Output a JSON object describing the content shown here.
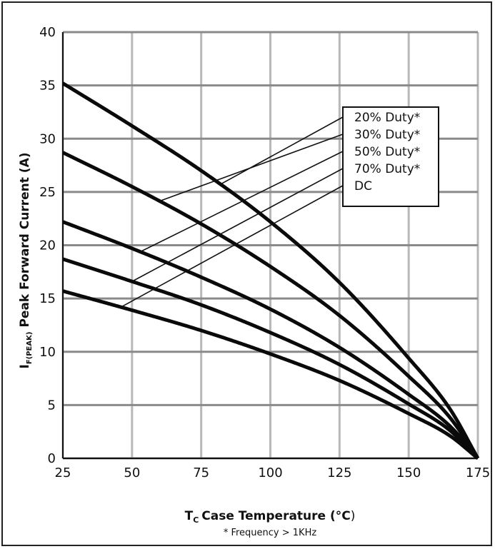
{
  "chart_data": {
    "type": "line",
    "xlabel": {
      "symbol": "T",
      "subscript": "C",
      "text": "Case Temperature (",
      "degree": "°C",
      "close": ")"
    },
    "ylabel": {
      "symbol": "I",
      "subscript": "F(PEAK)",
      "text": "Peak Forward Current (A)"
    },
    "footnote": "* Frequency > 1KHz",
    "xlim": [
      25,
      175
    ],
    "ylim": [
      0,
      40
    ],
    "xticks": [
      25,
      50,
      75,
      100,
      125,
      150,
      175
    ],
    "yticks": [
      0,
      5,
      10,
      15,
      20,
      25,
      30,
      35,
      40
    ],
    "grid": true,
    "legend_position": "top-right",
    "x": [
      25,
      50,
      75,
      100,
      125,
      150,
      165,
      175
    ],
    "series": [
      {
        "name": "20% Duty*",
        "values": [
          35.2,
          31.2,
          27.0,
          22.2,
          16.5,
          9.4,
          4.6,
          0
        ]
      },
      {
        "name": "30% Duty*",
        "values": [
          28.7,
          25.5,
          22.0,
          18.0,
          13.4,
          7.7,
          3.8,
          0
        ]
      },
      {
        "name": "50% Duty*",
        "values": [
          22.2,
          19.7,
          17.0,
          14.0,
          10.4,
          6.0,
          3.0,
          0
        ]
      },
      {
        "name": "70% Duty*",
        "values": [
          18.7,
          16.6,
          14.4,
          11.8,
          8.8,
          5.1,
          2.6,
          0
        ]
      },
      {
        "name": "DC",
        "values": [
          15.7,
          13.9,
          12.0,
          9.8,
          7.3,
          4.2,
          2.1,
          0
        ]
      }
    ],
    "leader_anchor_x": [
      82,
      60,
      53,
      50,
      46
    ]
  }
}
